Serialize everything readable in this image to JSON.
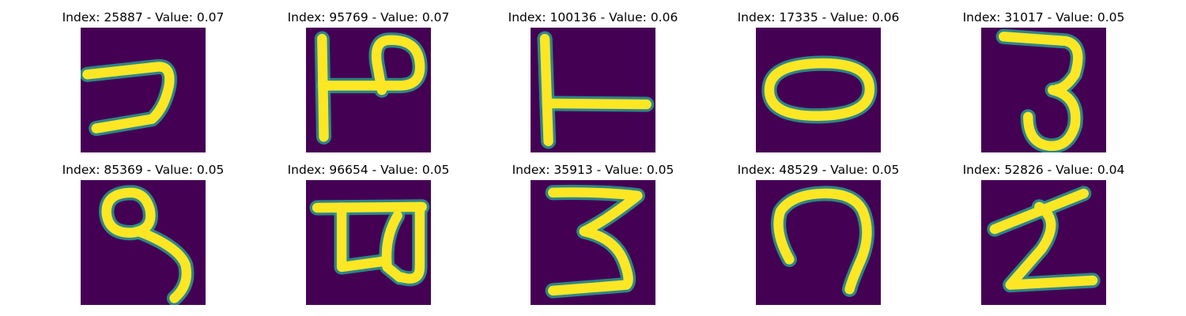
{
  "figure": {
    "panels": [
      {
        "title": "Index: 25887 - Value: 0.07",
        "glyph": "hook-seven"
      },
      {
        "title": "Index: 95769 - Value: 0.07",
        "glyph": "crossed-p"
      },
      {
        "title": "Index: 100136 - Value: 0.06",
        "glyph": "t-rotated"
      },
      {
        "title": "Index: 17335 - Value: 0.06",
        "glyph": "oval"
      },
      {
        "title": "Index: 31017 - Value: 0.05",
        "glyph": "three-tall"
      },
      {
        "title": "Index: 85369 - Value: 0.05",
        "glyph": "loop-nine"
      },
      {
        "title": "Index: 96654 - Value: 0.05",
        "glyph": "bar-glyph"
      },
      {
        "title": "Index: 35913 - Value: 0.05",
        "glyph": "three-wide"
      },
      {
        "title": "Index: 48529 - Value: 0.05",
        "glyph": "hook-arch"
      },
      {
        "title": "Index: 52826 - Value: 0.04",
        "glyph": "zigzag-z"
      }
    ],
    "colors": {
      "background": "#440154",
      "stroke": "#fde725",
      "edge": "#2a9d8f"
    }
  }
}
